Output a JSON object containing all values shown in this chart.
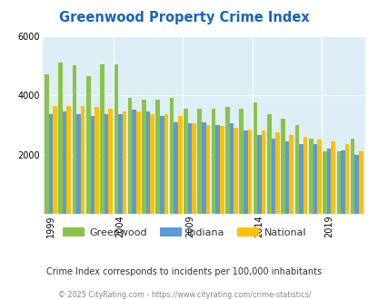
{
  "title": "Greenwood Property Crime Index",
  "subtitle": "Crime Index corresponds to incidents per 100,000 inhabitants",
  "footer": "© 2025 CityRating.com - https://www.cityrating.com/crime-statistics/",
  "years": [
    1999,
    2000,
    2001,
    2002,
    2003,
    2004,
    2005,
    2006,
    2007,
    2008,
    2009,
    2010,
    2011,
    2012,
    2013,
    2014,
    2015,
    2016,
    2017,
    2018,
    2019,
    2020,
    2021
  ],
  "greenwood": [
    4700,
    5100,
    5000,
    4650,
    5050,
    5050,
    3900,
    3850,
    3850,
    3900,
    3550,
    3550,
    3550,
    3600,
    3550,
    3750,
    3350,
    3200,
    3000,
    2550,
    2100,
    2100,
    2550
  ],
  "indiana": [
    3350,
    3450,
    3350,
    3300,
    3350,
    3350,
    3500,
    3450,
    3300,
    3100,
    3050,
    3100,
    3000,
    3050,
    2800,
    2650,
    2550,
    2450,
    2350,
    2350,
    2200,
    2150,
    2000
  ],
  "national": [
    3650,
    3650,
    3650,
    3600,
    3550,
    3450,
    3450,
    3350,
    3350,
    3300,
    3050,
    3000,
    2950,
    2900,
    2850,
    2800,
    2750,
    2650,
    2600,
    2500,
    2450,
    2350,
    2100
  ],
  "bar_colors": [
    "#8bc34a",
    "#5b9bd5",
    "#ffc000"
  ],
  "bg_color": "#ddeef6",
  "ylim": [
    0,
    6000
  ],
  "yticks": [
    0,
    2000,
    4000,
    6000
  ],
  "xtick_labels": [
    "1999",
    "2004",
    "2009",
    "2014",
    "2019"
  ],
  "xtick_positions": [
    0,
    5,
    10,
    15,
    20
  ],
  "legend_labels": [
    "Greenwood",
    "Indiana",
    "National"
  ],
  "title_color": "#1565c0",
  "subtitle_color": "#333333",
  "footer_color": "#888888"
}
